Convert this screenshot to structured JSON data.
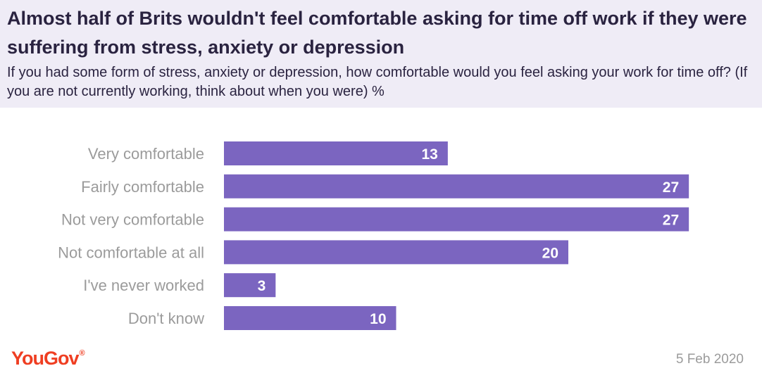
{
  "header": {
    "title": "Almost half of Brits wouldn't feel comfortable asking for time off work if they were suffering from stress, anxiety or depression",
    "subtitle": "If you had some form of stress, anxiety or depression, how comfortable would you feel asking your work for time off? (If you are not currently working, think about when you were) %"
  },
  "colors": {
    "bar": "#7b65c0",
    "header_bg": "#efecf6",
    "brand": "#ef3e22"
  },
  "chart_data": {
    "type": "bar",
    "orientation": "horizontal",
    "title": "Almost half of Brits wouldn't feel comfortable asking for time off work if they were suffering from stress, anxiety or depression",
    "categories": [
      "Very comfortable",
      "Fairly comfortable",
      "Not very comfortable",
      "Not comfortable at all",
      "I've never worked",
      "Don't know"
    ],
    "values": [
      13,
      27,
      27,
      20,
      3,
      10
    ],
    "unit": "%",
    "xlim": [
      0,
      30
    ],
    "xlabel": "",
    "ylabel": ""
  },
  "footer": {
    "brand": "YouGov",
    "brand_mark": "®",
    "date": "5 Feb 2020"
  }
}
